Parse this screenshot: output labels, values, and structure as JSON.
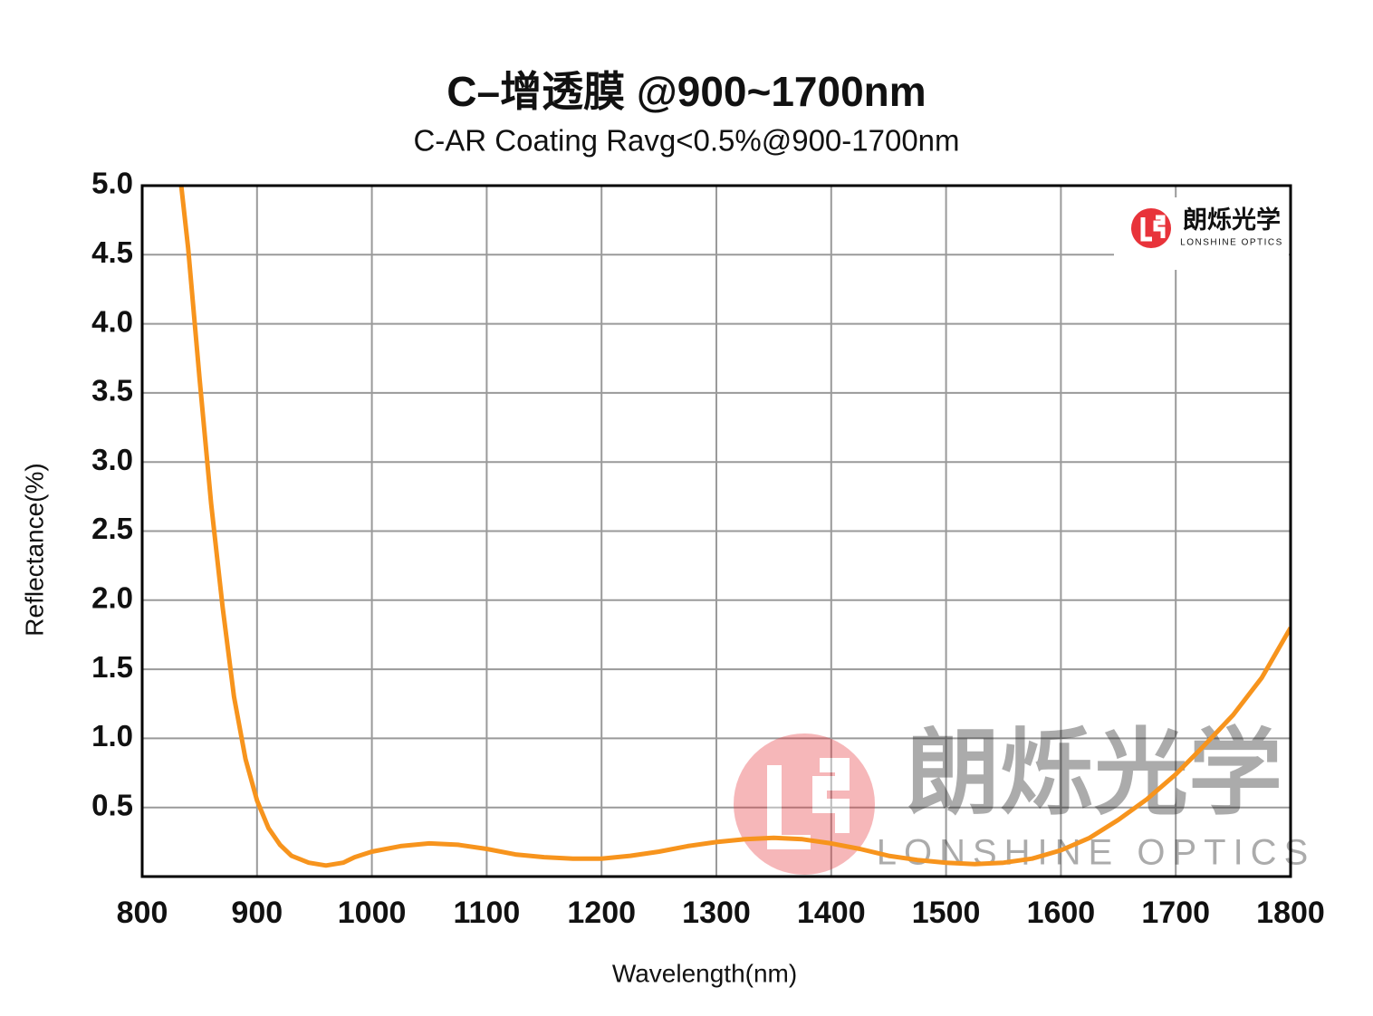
{
  "chart_data": {
    "type": "line",
    "title": "C–增透膜 @900~1700nm",
    "subtitle": "C-AR Coating Ravg<0.5%@900-1700nm",
    "xlabel": "Wavelength(nm)",
    "ylabel": "Reflectance(%)",
    "logo": {
      "name": "朗烁光学",
      "tagline": "LONSHINE OPTICS"
    },
    "color": "#f7941d",
    "grid": true,
    "xlim": [
      800,
      1800
    ],
    "ylim": [
      0,
      5
    ],
    "xticks": [
      800,
      900,
      1000,
      1100,
      1200,
      1300,
      1400,
      1500,
      1600,
      1700,
      1800
    ],
    "yticks": [
      0.5,
      {
        "value": 1,
        "label": "1.0"
      },
      1.5,
      {
        "value": 2,
        "label": "2.0"
      },
      2.5,
      {
        "value": 3,
        "label": "3.0"
      },
      3.5,
      {
        "value": 4,
        "label": "4.0"
      },
      4.5,
      {
        "value": 5,
        "label": "5.0"
      }
    ],
    "x": [
      834,
      840,
      850,
      860,
      870,
      880,
      890,
      900,
      910,
      920,
      930,
      945,
      960,
      975,
      985,
      1000,
      1025,
      1050,
      1075,
      1100,
      1125,
      1150,
      1175,
      1200,
      1225,
      1250,
      1275,
      1300,
      1325,
      1350,
      1375,
      1400,
      1425,
      1450,
      1475,
      1500,
      1525,
      1550,
      1575,
      1600,
      1625,
      1650,
      1675,
      1700,
      1725,
      1750,
      1775,
      1800
    ],
    "values": [
      5.0,
      4.55,
      3.6,
      2.7,
      1.95,
      1.3,
      0.85,
      0.55,
      0.35,
      0.23,
      0.15,
      0.1,
      0.08,
      0.1,
      0.14,
      0.18,
      0.22,
      0.24,
      0.23,
      0.2,
      0.16,
      0.14,
      0.13,
      0.13,
      0.15,
      0.18,
      0.22,
      0.25,
      0.27,
      0.28,
      0.27,
      0.24,
      0.2,
      0.15,
      0.12,
      0.1,
      0.09,
      0.1,
      0.13,
      0.19,
      0.28,
      0.41,
      0.56,
      0.74,
      0.95,
      1.17,
      1.44,
      1.8
    ]
  }
}
